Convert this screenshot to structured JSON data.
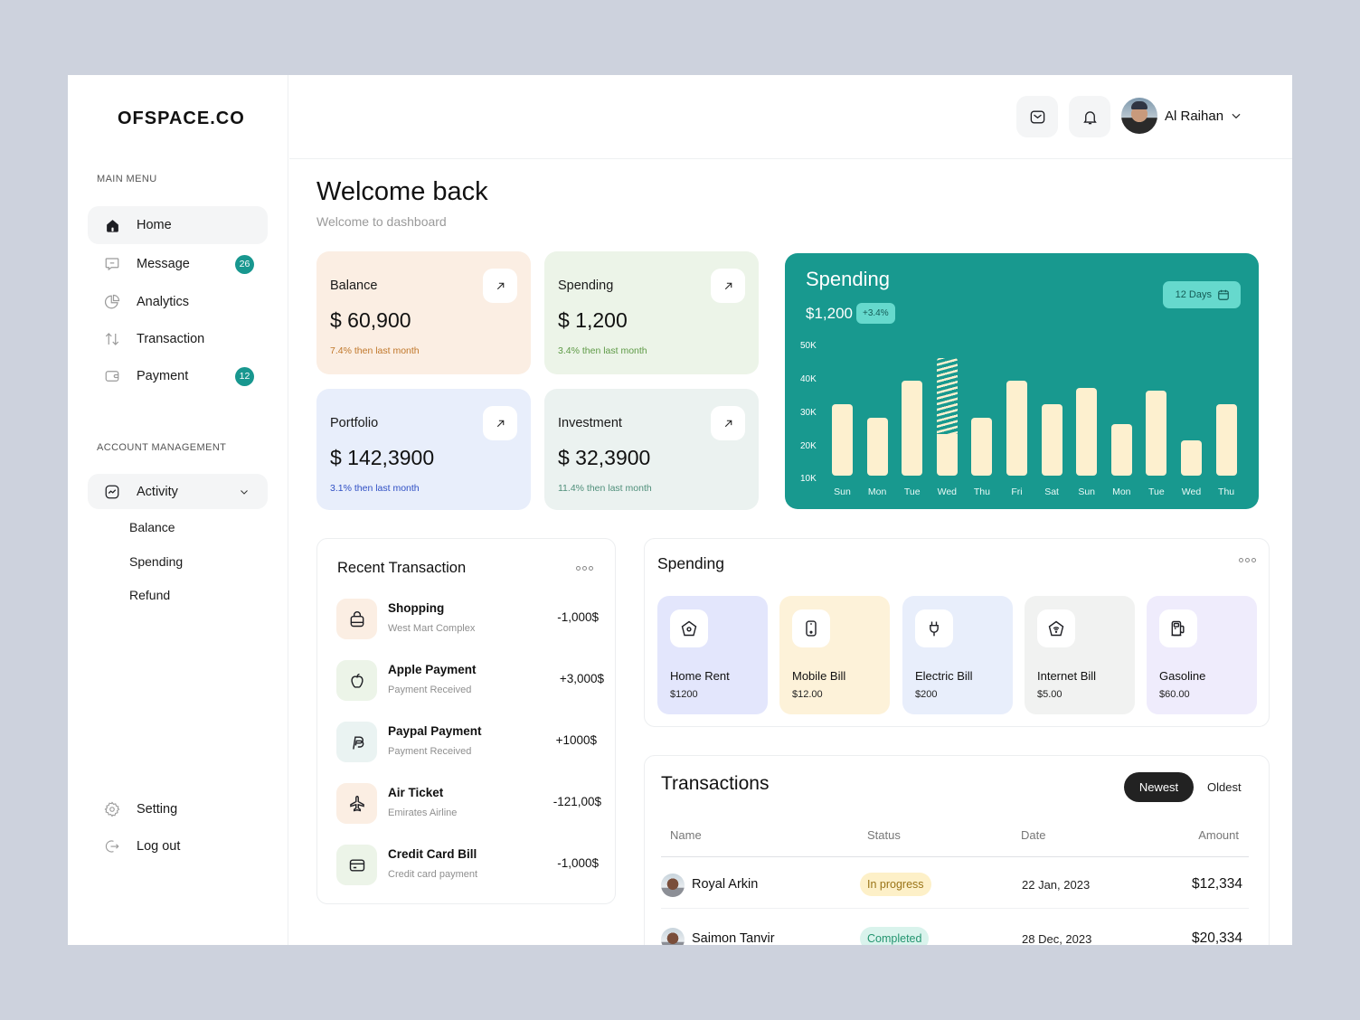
{
  "app": {
    "logo": "OFSPACE.CO"
  },
  "sidebar": {
    "main_menu_label": "MAIN MENU",
    "main_items": [
      {
        "label": "Home",
        "icon": "home-icon",
        "active": true
      },
      {
        "label": "Message",
        "icon": "message-icon",
        "badge": "26"
      },
      {
        "label": "Analytics",
        "icon": "analytics-icon"
      },
      {
        "label": "Transaction",
        "icon": "transaction-icon"
      },
      {
        "label": "Payment",
        "icon": "wallet-icon",
        "badge": "12"
      }
    ],
    "account_label": "ACCOUNT MANAGEMENT",
    "activity": {
      "label": "Activity",
      "icon": "activity-icon",
      "expanded": true
    },
    "activity_sub": [
      "Balance",
      "Spending",
      "Refund"
    ],
    "bottom_items": [
      {
        "label": "Setting",
        "icon": "gear-icon"
      },
      {
        "label": "Log out",
        "icon": "logout-icon"
      }
    ]
  },
  "header": {
    "user_name": "Al Raihan",
    "mail_icon": "mail-icon",
    "bell_icon": "bell-icon"
  },
  "welcome": {
    "title": "Welcome back",
    "subtitle": "Welcome to dashboard"
  },
  "stats": [
    {
      "title": "Balance",
      "value": "$ 60,900",
      "change": "7.4% then last month",
      "bg": "#fbeee3",
      "change_color": "#c0772a"
    },
    {
      "title": "Spending",
      "value": "$ 1,200",
      "change": "3.4% then last month",
      "bg": "#ecf4e8",
      "change_color": "#5e9a46"
    },
    {
      "title": "Portfolio",
      "value": "$ 142,3900",
      "change": "3.1% then last month",
      "bg": "#e8eefb",
      "change_color": "#2f4fc4"
    },
    {
      "title": "Investment",
      "value": "$ 32,3900",
      "change": "11.4% then last month",
      "bg": "#ebf2f0",
      "change_color": "#4f8f7a"
    }
  ],
  "chart_card": {
    "title": "Spending",
    "total": "$1,200",
    "change_pill": "+3.4%",
    "range_button": "12 Days",
    "accent": "#18998f",
    "bar_color": "#fdf0cf"
  },
  "chart_data": {
    "type": "bar",
    "title": "Spending",
    "categories": [
      "Sun",
      "Mon",
      "Tue",
      "Wed",
      "Thu",
      "Fri",
      "Sat",
      "Sun",
      "Mon",
      "Tue",
      "Wed",
      "Thu"
    ],
    "values": [
      33,
      29,
      40,
      24,
      29,
      40,
      33,
      38,
      27,
      37,
      22,
      33
    ],
    "highlight": {
      "index": 3,
      "hatched_top_value": 47
    },
    "unit": "K",
    "yticks": [
      "10K",
      "20K",
      "30K",
      "40K",
      "50K"
    ],
    "ylim": [
      10,
      50
    ],
    "xlabel": "",
    "ylabel": "",
    "grid": false,
    "legend": null
  },
  "recent": {
    "title": "Recent Transaction",
    "items": [
      {
        "name": "Shopping",
        "sub": "West Mart Complex",
        "amount": "-1,000$",
        "icon": "shopping-bag-icon",
        "bg": "#fbeee3"
      },
      {
        "name": "Apple Payment",
        "sub": "Payment Received",
        "amount": "+3,000$",
        "icon": "apple-icon",
        "bg": "#ecf4e8"
      },
      {
        "name": "Paypal Payment",
        "sub": "Payment Received",
        "amount": "+1000$",
        "icon": "paypal-icon",
        "bg": "#eaf3f2"
      },
      {
        "name": "Air Ticket",
        "sub": "Emirates Airline",
        "amount": "-121,00$",
        "icon": "airplane-icon",
        "bg": "#fbeee3"
      },
      {
        "name": "Credit Card Bill",
        "sub": "Credit card payment",
        "amount": "-1,000$",
        "icon": "credit-card-icon",
        "bg": "#ecf4e8"
      }
    ]
  },
  "spending": {
    "title": "Spending",
    "categories": [
      {
        "name": "Home Rent",
        "amount": "$1200",
        "icon": "home-outline-icon",
        "bg": "#e3e6fc"
      },
      {
        "name": "Mobile Bill",
        "amount": "$12.00",
        "icon": "mobile-icon",
        "bg": "#fdf2d9"
      },
      {
        "name": "Electric Bill",
        "amount": "$200",
        "icon": "plug-icon",
        "bg": "#e8eefb"
      },
      {
        "name": "Internet Bill",
        "amount": "$5.00",
        "icon": "wifi-icon",
        "bg": "#f1f2f1"
      },
      {
        "name": "Gasoline",
        "amount": "$60.00",
        "icon": "fuel-icon",
        "bg": "#efecfc"
      }
    ]
  },
  "transactions": {
    "title": "Transactions",
    "sort_options": [
      "Newest",
      "Oldest"
    ],
    "sort_selected": "Newest",
    "columns": [
      "Name",
      "Status",
      "Date",
      "Amount"
    ],
    "rows": [
      {
        "name": "Royal Arkin",
        "status": "In progress",
        "status_bg": "#fdf0c8",
        "status_color": "#9a7417",
        "date": "22 Jan, 2023",
        "amount": "$12,334"
      },
      {
        "name": "Saimon Tanvir",
        "status": "Completed",
        "status_bg": "#d9f3ec",
        "status_color": "#23946f",
        "date": "28 Dec, 2023",
        "amount": "$20,334"
      }
    ]
  }
}
